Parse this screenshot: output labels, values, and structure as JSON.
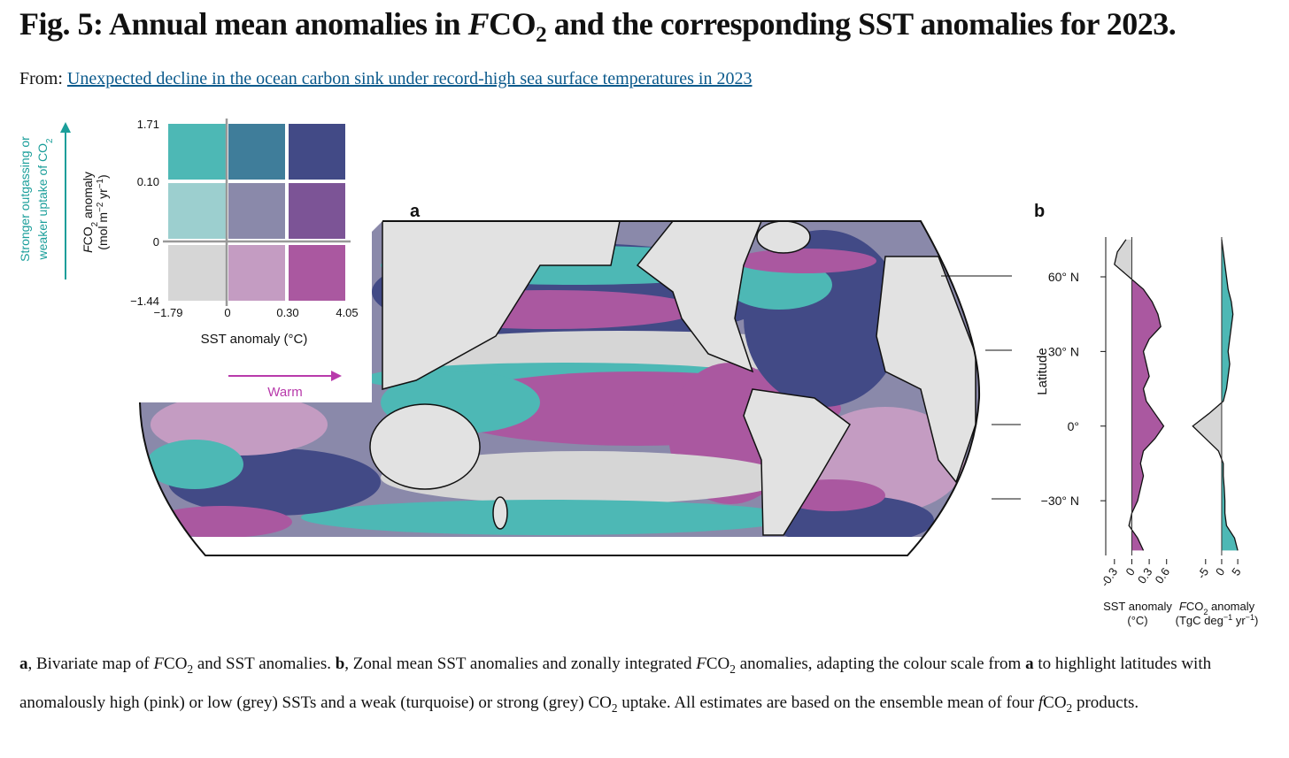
{
  "header": {
    "title": [
      {
        "text": "Fig. 5: Annual mean anomalies in "
      },
      {
        "text": "F",
        "style": "italic"
      },
      {
        "text": "CO"
      },
      {
        "text": "2",
        "style": "sub"
      },
      {
        "text": " and the corresponding SST anomalies for 2023."
      }
    ],
    "from_label": "From:",
    "from_link": "Unexpected decline in the ocean carbon sink under record-high sea surface temperatures in 2023"
  },
  "legend": {
    "y_arrow_label": [
      [
        {
          "text": "Stronger outgassing or"
        }
      ],
      [
        {
          "text": "weaker uptake of CO"
        },
        {
          "text": "2",
          "style": "sub"
        }
      ]
    ],
    "y_arrow_color": "#1a9e9a",
    "y_axis_label": [
      [
        {
          "text": "F",
          "style": "italic"
        },
        {
          "text": "CO"
        },
        {
          "text": "2",
          "style": "sub"
        },
        {
          "text": " anomaly"
        }
      ],
      [
        {
          "text": "(mol m"
        },
        {
          "text": "−2",
          "style": "sup"
        },
        {
          "text": " yr"
        },
        {
          "text": "−1",
          "style": "sup"
        },
        {
          "text": ")"
        }
      ]
    ],
    "yticks": [
      {
        "value": 1.71,
        "label": "1.71"
      },
      {
        "value": 0.1,
        "label": "0.10"
      },
      0,
      {
        "value": -1.44,
        "label": "−1.44"
      }
    ],
    "xticks": [
      {
        "value": -1.79,
        "label": "−1.79"
      },
      0,
      {
        "value": 0.3,
        "label": "0.30"
      },
      {
        "value": 4.05,
        "label": "4.05"
      }
    ],
    "x_axis_label": "SST anomaly (°C)",
    "x_arrow_label": "Warm",
    "x_arrow_color": "#b83aab",
    "cell_colors": [
      [
        "#4db8b5",
        "#3f7d9a",
        "#424a86"
      ],
      [
        "#9ccfcf",
        "#8a89aa",
        "#7c5496"
      ],
      [
        "#d6d6d6",
        "#c49cc2",
        "#aa58a0"
      ]
    ]
  },
  "panel_a": {
    "label": "a"
  },
  "panel_b": {
    "label": "b",
    "y_axis_label": "Latitude"
  },
  "chart_data": [
    {
      "type": "area",
      "y": [
        75,
        70,
        65,
        60,
        55,
        50,
        45,
        40,
        35,
        30,
        25,
        20,
        15,
        10,
        5,
        0,
        -5,
        -10,
        -15,
        -20,
        -25,
        -30,
        -35,
        -40,
        -45,
        -50
      ],
      "values": [
        -0.1,
        -0.25,
        -0.3,
        -0.05,
        0.2,
        0.35,
        0.45,
        0.5,
        0.3,
        0.2,
        0.25,
        0.3,
        0.2,
        0.25,
        0.4,
        0.55,
        0.4,
        0.2,
        0.15,
        0.2,
        0.15,
        0.1,
        0.0,
        -0.05,
        0.1,
        0.2
      ],
      "xlim": [
        -0.45,
        0.65
      ],
      "xticks": [
        {
          "value": -0.3,
          "label": "-0.3"
        },
        0,
        0.3,
        0.6
      ],
      "ylim": [
        -52,
        76
      ],
      "yticks": [
        {
          "value": 60,
          "label": "60° N"
        },
        {
          "value": 30,
          "label": "30° N"
        },
        {
          "value": 0,
          "label": "0°"
        },
        {
          "value": -30,
          "label": "−30° N"
        }
      ],
      "x_axis_label": [
        [
          {
            "text": "SST anomaly"
          }
        ],
        [
          {
            "text": "(°C)"
          }
        ]
      ],
      "positive_color": "#aa58a0",
      "negative_color": "#d6d6d6"
    },
    {
      "type": "area",
      "y": [
        75,
        70,
        65,
        60,
        55,
        50,
        45,
        40,
        35,
        30,
        25,
        20,
        15,
        10,
        5,
        0,
        -5,
        -10,
        -15,
        -20,
        -25,
        -30,
        -35,
        -40,
        -45,
        -50
      ],
      "values": [
        0,
        0.5,
        1,
        1.5,
        2,
        3,
        3.5,
        3,
        2.5,
        2,
        2.5,
        2,
        1.5,
        0.5,
        -4,
        -9,
        -5,
        -1,
        0.5,
        0.5,
        0.8,
        1,
        1,
        1.5,
        4,
        5
      ],
      "xlim": [
        -11,
        8
      ],
      "xticks": [
        {
          "value": -5,
          "label": "-5"
        },
        0,
        5
      ],
      "ylim": [
        -52,
        76
      ],
      "x_axis_label": [
        [
          {
            "text": "F",
            "style": "italic"
          },
          {
            "text": "CO"
          },
          {
            "text": "2",
            "style": "sub"
          },
          {
            "text": " anomaly"
          }
        ],
        [
          {
            "text": "(TgC deg"
          },
          {
            "text": "−1",
            "style": "sup"
          },
          {
            "text": " yr"
          },
          {
            "text": "−1",
            "style": "sup"
          },
          {
            "text": ")"
          }
        ]
      ],
      "positive_color": "#4db8b5",
      "negative_color": "#d6d6d6"
    }
  ],
  "caption": [
    {
      "text": "a",
      "style": "bold"
    },
    {
      "text": ", Bivariate map of "
    },
    {
      "text": "F",
      "style": "italic"
    },
    {
      "text": "CO"
    },
    {
      "text": "2",
      "style": "sub"
    },
    {
      "text": " and SST anomalies. "
    },
    {
      "text": "b",
      "style": "bold"
    },
    {
      "text": ", Zonal mean SST anomalies and zonally integrated "
    },
    {
      "text": "F",
      "style": "italic"
    },
    {
      "text": "CO"
    },
    {
      "text": "2",
      "style": "sub"
    },
    {
      "text": " anomalies, adapting the colour scale from "
    },
    {
      "text": "a",
      "style": "bold"
    },
    {
      "text": " to highlight latitudes with anomalously high (pink) or low (grey) SSTs and a weak (turquoise) or strong (grey) CO"
    },
    {
      "text": "2",
      "style": "sub"
    },
    {
      "text": " uptake. All estimates are based on the ensemble mean of four "
    },
    {
      "text": "f",
      "style": "italic"
    },
    {
      "text": "CO"
    },
    {
      "text": "2",
      "style": "sub"
    },
    {
      "text": " products."
    }
  ]
}
